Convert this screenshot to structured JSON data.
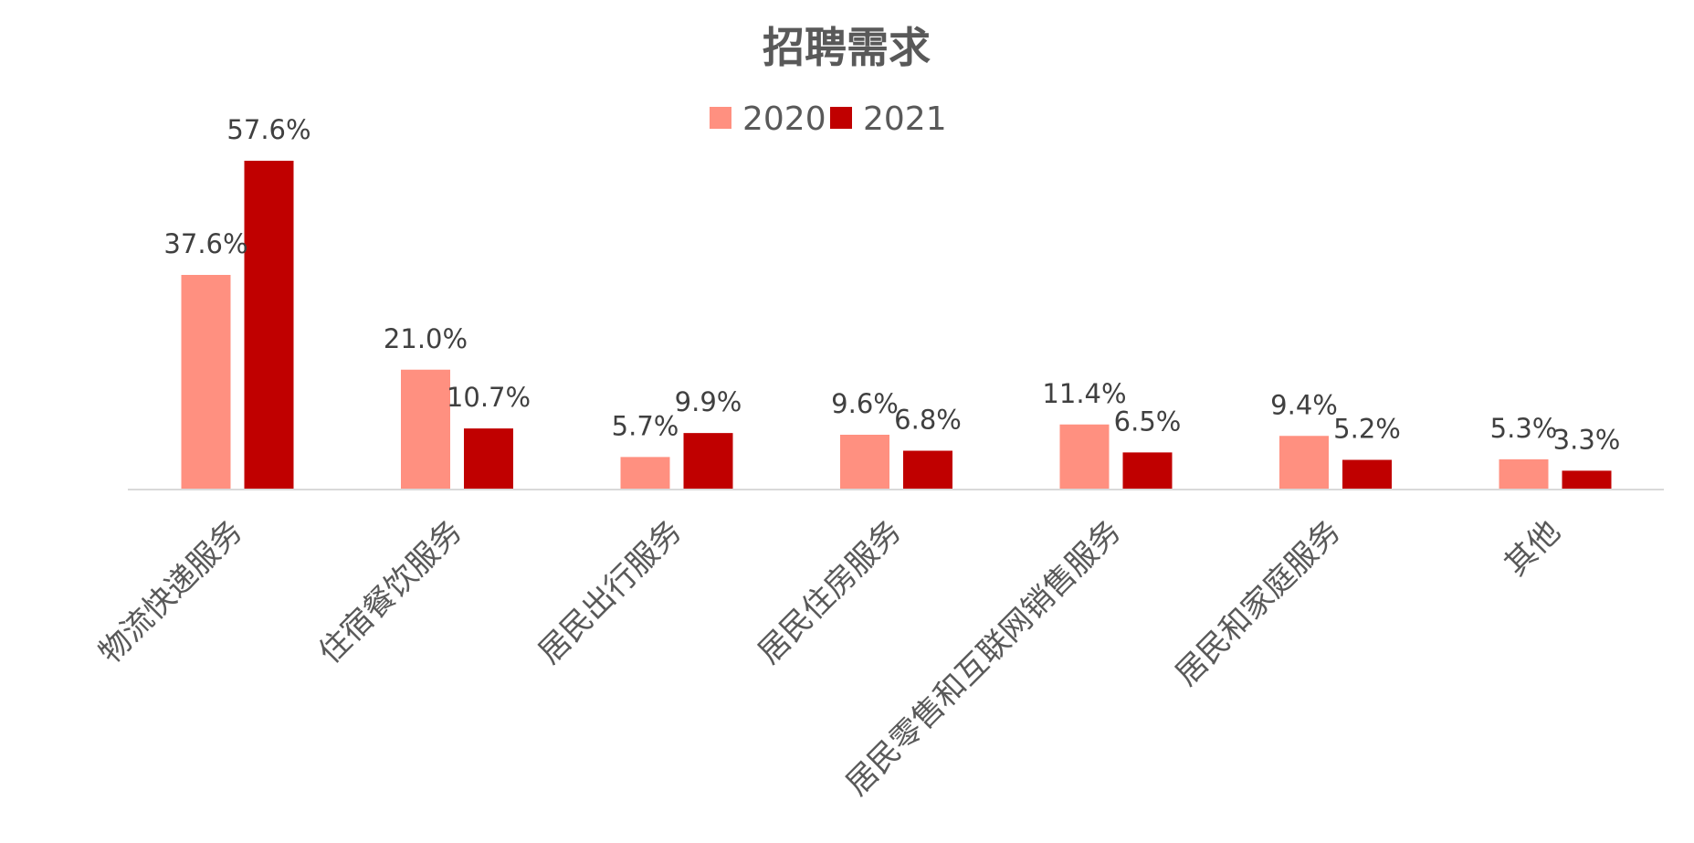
{
  "chart_data": {
    "type": "bar",
    "title": "招聘需求",
    "xlabel": "",
    "ylabel": "",
    "ylim": [
      0,
      60
    ],
    "grid": false,
    "legend_position": "top-center",
    "unit": "%",
    "categories": [
      "物流快递服务",
      "住宿餐饮服务",
      "居民出行服务",
      "居民住房服务",
      "居民零售和互联网销售服务",
      "居民和家庭服务",
      "其他"
    ],
    "series": [
      {
        "name": "2020",
        "color": "#FF9080",
        "values": [
          37.6,
          21.0,
          5.7,
          9.6,
          11.4,
          9.4,
          5.3
        ],
        "labels": [
          "37.6%",
          "21.0%",
          "5.7%",
          "9.6%",
          "11.4%",
          "9.4%",
          "5.3%"
        ]
      },
      {
        "name": "2021",
        "color": "#C00000",
        "values": [
          57.6,
          10.7,
          9.9,
          6.8,
          6.5,
          5.2,
          3.3
        ],
        "labels": [
          "57.6%",
          "10.7%",
          "9.9%",
          "6.8%",
          "6.5%",
          "5.2%",
          "3.3%"
        ]
      }
    ],
    "axis_color": "#D9D9D9"
  }
}
